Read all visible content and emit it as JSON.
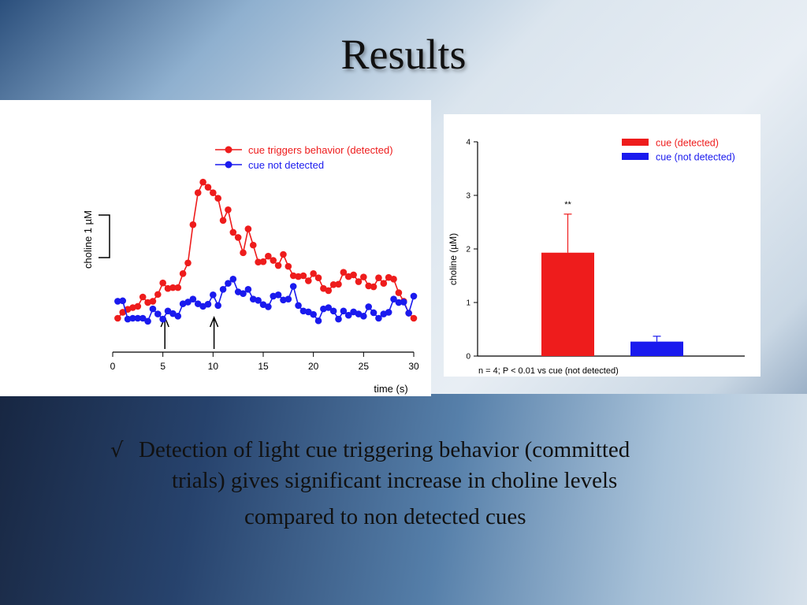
{
  "slide": {
    "title": "Results",
    "bullet": {
      "mark": "√",
      "line1": "Detection of light cue triggering behavior (committed",
      "line2": "trials) gives significant increase in choline levels",
      "line3": "compared to non detected cues"
    },
    "colors": {
      "red": "#ee1c1c",
      "blue": "#1a1aee"
    }
  },
  "chart_data": [
    {
      "type": "line",
      "xlabel": "time (s)",
      "scale_bar_label": "choline 1 µM",
      "xlim": [
        0,
        30
      ],
      "x_ticks": [
        0,
        5,
        10,
        15,
        20,
        25,
        30
      ],
      "y_units": "µM",
      "arrow_times": [
        5.2,
        10.1
      ],
      "series": [
        {
          "name": "cue triggers behavior (detected)",
          "color": "#ee1c1c",
          "x": [
            0.5,
            1.0,
            1.5,
            2.0,
            2.5,
            3.0,
            3.5,
            4.0,
            4.5,
            5.0,
            5.5,
            6.0,
            6.5,
            7.0,
            7.5,
            8.0,
            8.5,
            9.0,
            9.5,
            10.0,
            10.5,
            11.0,
            11.5,
            12.0,
            12.5,
            13.0,
            13.5,
            14.0,
            14.5,
            15.0,
            15.5,
            16.0,
            16.5,
            17.0,
            17.5,
            18.0,
            18.5,
            19.0,
            19.5,
            20.0,
            20.5,
            21.0,
            21.5,
            22.0,
            22.5,
            23.0,
            23.5,
            24.0,
            24.5,
            25.0,
            25.5,
            26.0,
            26.5,
            27.0,
            27.5,
            28.0,
            28.5,
            29.0,
            29.5,
            30.0
          ],
          "values": [
            0.0,
            0.14,
            0.21,
            0.25,
            0.28,
            0.5,
            0.37,
            0.4,
            0.56,
            0.83,
            0.7,
            0.72,
            0.72,
            1.05,
            1.3,
            2.2,
            2.95,
            3.2,
            3.08,
            2.95,
            2.82,
            2.3,
            2.55,
            2.02,
            1.9,
            1.54,
            2.1,
            1.72,
            1.32,
            1.33,
            1.46,
            1.36,
            1.24,
            1.5,
            1.22,
            1.0,
            0.98,
            1.0,
            0.88,
            1.05,
            0.95,
            0.7,
            0.65,
            0.79,
            0.8,
            1.08,
            0.98,
            1.02,
            0.86,
            0.97,
            0.76,
            0.74,
            0.95,
            0.82,
            0.96,
            0.92,
            0.6,
            0.4,
            0.12,
            0.0
          ]
        },
        {
          "name": "cue not detected",
          "color": "#1a1aee",
          "x": [
            0.5,
            1.0,
            1.5,
            2.0,
            2.5,
            3.0,
            3.5,
            4.0,
            4.5,
            5.0,
            5.5,
            6.0,
            6.5,
            7.0,
            7.5,
            8.0,
            8.5,
            9.0,
            9.5,
            10.0,
            10.5,
            11.0,
            11.5,
            12.0,
            12.5,
            13.0,
            13.5,
            14.0,
            14.5,
            15.0,
            15.5,
            16.0,
            16.5,
            17.0,
            17.5,
            18.0,
            18.5,
            19.0,
            19.5,
            20.0,
            20.5,
            21.0,
            21.5,
            22.0,
            22.5,
            23.0,
            23.5,
            24.0,
            24.5,
            25.0,
            25.5,
            26.0,
            26.5,
            27.0,
            27.5,
            28.0,
            28.5,
            29.0,
            29.5,
            30.0
          ],
          "values": [
            0.4,
            0.41,
            -0.02,
            0.0,
            0.0,
            0.0,
            -0.07,
            0.22,
            0.1,
            -0.02,
            0.17,
            0.11,
            0.05,
            0.34,
            0.38,
            0.45,
            0.34,
            0.28,
            0.33,
            0.55,
            0.3,
            0.68,
            0.82,
            0.92,
            0.62,
            0.58,
            0.68,
            0.45,
            0.42,
            0.32,
            0.27,
            0.52,
            0.55,
            0.43,
            0.45,
            0.75,
            0.3,
            0.17,
            0.15,
            0.09,
            -0.06,
            0.22,
            0.25,
            0.17,
            -0.02,
            0.17,
            0.07,
            0.15,
            0.1,
            0.05,
            0.27,
            0.13,
            0.0,
            0.1,
            0.14,
            0.45,
            0.37,
            0.38,
            0.12,
            0.52
          ]
        }
      ]
    },
    {
      "type": "bar",
      "ylabel": "choline (µM)",
      "ylim": [
        0,
        4
      ],
      "y_ticks": [
        0,
        1,
        2,
        3,
        4
      ],
      "categories": [
        "cue (detected)",
        "cue (not detected)"
      ],
      "values": [
        1.93,
        0.27
      ],
      "errors": [
        0.72,
        0.1
      ],
      "colors": [
        "#ee1c1c",
        "#1a1aee"
      ],
      "significance": "**",
      "footnote": "n = 4; P < 0.01 vs cue (not detected)",
      "legend_position": "top-right"
    }
  ]
}
